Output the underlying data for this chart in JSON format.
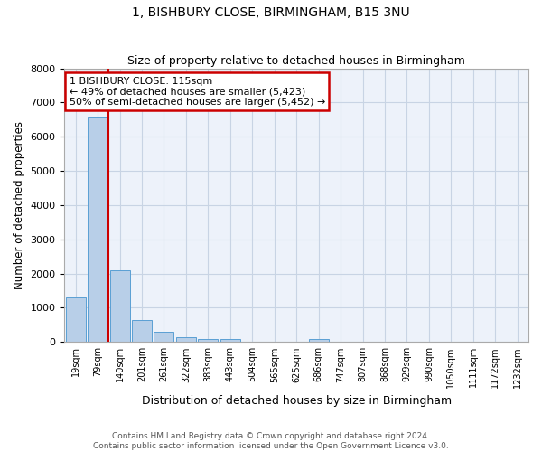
{
  "title": "1, BISHBURY CLOSE, BIRMINGHAM, B15 3NU",
  "subtitle": "Size of property relative to detached houses in Birmingham",
  "xlabel": "Distribution of detached houses by size in Birmingham",
  "ylabel": "Number of detached properties",
  "footer_line1": "Contains HM Land Registry data © Crown copyright and database right 2024.",
  "footer_line2": "Contains public sector information licensed under the Open Government Licence v3.0.",
  "categories": [
    "19sqm",
    "79sqm",
    "140sqm",
    "201sqm",
    "261sqm",
    "322sqm",
    "383sqm",
    "443sqm",
    "504sqm",
    "565sqm",
    "625sqm",
    "686sqm",
    "747sqm",
    "807sqm",
    "868sqm",
    "929sqm",
    "990sqm",
    "1050sqm",
    "1111sqm",
    "1172sqm",
    "1232sqm"
  ],
  "values": [
    1300,
    6600,
    2100,
    650,
    300,
    150,
    100,
    100,
    0,
    0,
    0,
    100,
    0,
    0,
    0,
    0,
    0,
    0,
    0,
    0,
    0
  ],
  "bar_color": "#b8cfe8",
  "bar_edge_color": "#5a9fd4",
  "ylim": [
    0,
    8000
  ],
  "yticks": [
    0,
    1000,
    2000,
    3000,
    4000,
    5000,
    6000,
    7000,
    8000
  ],
  "red_line_x": 1.5,
  "annotation_title": "1 BISHBURY CLOSE: 115sqm",
  "annotation_line1": "← 49% of detached houses are smaller (5,423)",
  "annotation_line2": "50% of semi-detached houses are larger (5,452) →",
  "annotation_box_color": "#cc0000",
  "grid_color": "#c8d4e4",
  "background_color": "#edf2fa"
}
